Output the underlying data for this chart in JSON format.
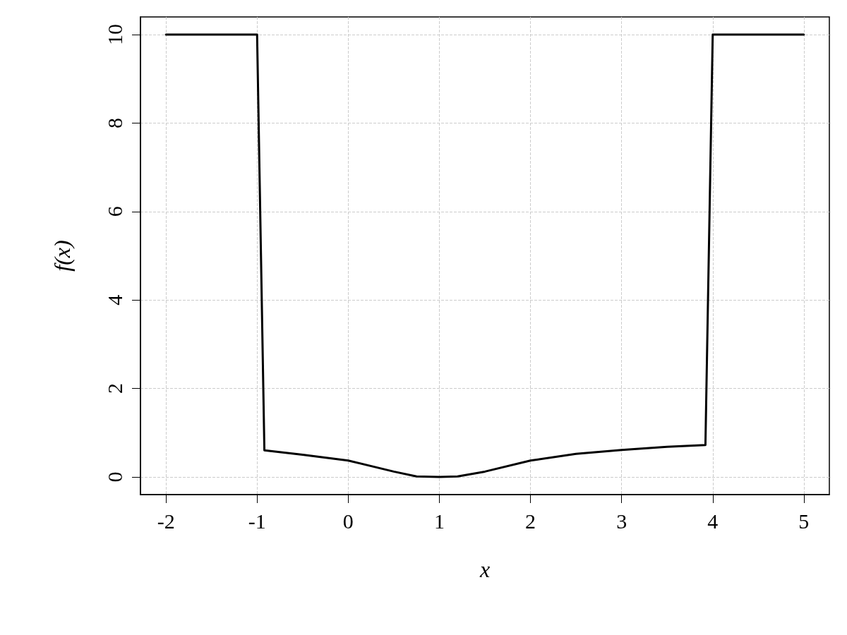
{
  "chart_data": {
    "type": "line",
    "xlabel": "x",
    "ylabel": "f(x)",
    "x": [
      -2,
      -1,
      -0.92,
      -0.5,
      0,
      0.5,
      0.75,
      1,
      1.2,
      1.5,
      2,
      2.5,
      3,
      3.5,
      3.92,
      4,
      5
    ],
    "series": [
      {
        "color": "#000000",
        "values": [
          10,
          10,
          0.6,
          0.5,
          0.37,
          0.12,
          0.01,
          0,
          0.01,
          0.12,
          0.37,
          0.52,
          0.61,
          0.68,
          0.72,
          10,
          10
        ]
      }
    ],
    "xlim": [
      -2.28,
      5.28
    ],
    "ylim": [
      -0.4,
      10.4
    ],
    "xticks": [
      -2,
      -1,
      0,
      1,
      2,
      3,
      4,
      5
    ],
    "yticks": [
      0,
      2,
      4,
      6,
      8,
      10
    ],
    "grid": true,
    "marker": "none",
    "line_style": "solid"
  }
}
